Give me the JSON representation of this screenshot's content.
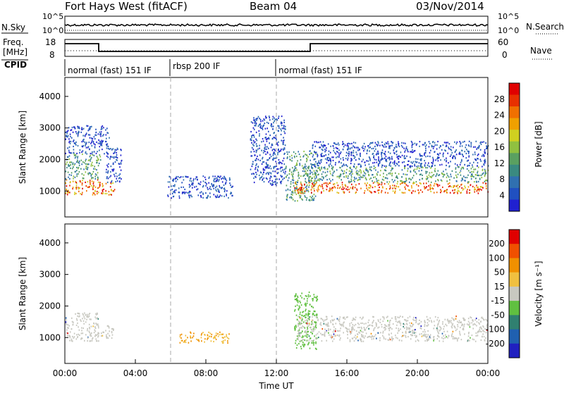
{
  "header": {
    "station": "Fort Hays West (fitACF)",
    "beam": "Beam 04",
    "date": "03/Nov/2014"
  },
  "status_panels": {
    "nsky_label": "N.Sky",
    "nsearch_label": "N.Search",
    "nsky_ticks": [
      "10^5",
      "10^0"
    ],
    "nsearch_ticks": [
      "10^5",
      "10^0"
    ],
    "freq_label_1": "Freq.",
    "freq_label_2": "[MHz]",
    "freq_ticks": [
      "18",
      "8"
    ],
    "nave_label": "Nave",
    "nave_ticks": [
      "60",
      "0"
    ],
    "cpid_label": "CPID"
  },
  "cpid_segments": [
    {
      "label": "normal (fast) 151 IF",
      "start_h": 0,
      "end_h": 6
    },
    {
      "label": "rbsp 200 IF",
      "start_h": 6,
      "end_h": 12
    },
    {
      "label": "normal (fast) 151 IF",
      "start_h": 12,
      "end_h": 24
    }
  ],
  "chart_data": [
    {
      "type": "heatmap",
      "panel": "power",
      "ylabel": "Slant Range [km]",
      "ylim": [
        180,
        4600
      ],
      "yticks": [
        1000,
        2000,
        3000,
        4000
      ],
      "xlim_hours": [
        0,
        24
      ],
      "colorbar": {
        "label": "Power [dB]",
        "ticks": [
          "28",
          "24",
          "20",
          "16",
          "12",
          "8",
          "4"
        ],
        "colors": [
          "#2020d0",
          "#2050c0",
          "#3070b0",
          "#3a8a80",
          "#5aa060",
          "#90c040",
          "#d0d020",
          "#f0a000",
          "#f07000",
          "#e83000",
          "#e00000"
        ]
      },
      "echo_regions": [
        {
          "t0": 0.0,
          "t1": 2.0,
          "r0": 900,
          "r1": 1400,
          "level": "high"
        },
        {
          "t0": 0.0,
          "t1": 2.0,
          "r0": 1400,
          "r1": 2200,
          "level": "mid"
        },
        {
          "t0": 0.0,
          "t1": 2.5,
          "r0": 2200,
          "r1": 3100,
          "level": "low"
        },
        {
          "t0": 2.0,
          "t1": 2.8,
          "r0": 900,
          "r1": 1300,
          "level": "high"
        },
        {
          "t0": 2.3,
          "t1": 3.2,
          "r0": 1300,
          "r1": 2400,
          "level": "low"
        },
        {
          "t0": 5.8,
          "t1": 9.5,
          "r0": 800,
          "r1": 1500,
          "level": "low"
        },
        {
          "t0": 10.5,
          "t1": 12.5,
          "r0": 1200,
          "r1": 3400,
          "level": "low"
        },
        {
          "t0": 12.5,
          "t1": 14.2,
          "r0": 700,
          "r1": 2300,
          "level": "mid"
        },
        {
          "t0": 13.0,
          "t1": 24.0,
          "r0": 950,
          "r1": 1300,
          "level": "high"
        },
        {
          "t0": 13.5,
          "t1": 24.0,
          "r0": 1300,
          "r1": 1800,
          "level": "mid"
        },
        {
          "t0": 14.0,
          "t1": 24.0,
          "r0": 1800,
          "r1": 2600,
          "level": "low"
        }
      ]
    },
    {
      "type": "heatmap",
      "panel": "velocity",
      "ylabel": "Slant Range [km]",
      "ylim": [
        180,
        4600
      ],
      "yticks": [
        1000,
        2000,
        3000,
        4000
      ],
      "xlim_hours": [
        0,
        24
      ],
      "xticks": [
        "00:00",
        "04:00",
        "08:00",
        "12:00",
        "16:00",
        "20:00",
        "00:00"
      ],
      "xlabel": "Time UT",
      "colorbar": {
        "label": "Velocity [m s⁻¹]",
        "ticks": [
          "200",
          "100",
          "50",
          "15",
          "-15",
          "-50",
          "-100",
          "-200"
        ],
        "colors": [
          "#2020c0",
          "#2060b0",
          "#308070",
          "#60c040",
          "#c8c8c0",
          "#f0c040",
          "#f09000",
          "#f05000",
          "#e00000"
        ]
      },
      "echo_regions": [
        {
          "t0": 0.0,
          "t1": 1.9,
          "r0": 900,
          "r1": 1800,
          "kind": "ground"
        },
        {
          "t0": 2.0,
          "t1": 2.8,
          "r0": 1000,
          "r1": 1400,
          "kind": "ground"
        },
        {
          "t0": 6.5,
          "t1": 9.3,
          "r0": 850,
          "r1": 1200,
          "kind": "neg"
        },
        {
          "t0": 13.0,
          "t1": 14.3,
          "r0": 650,
          "r1": 2500,
          "kind": "pos_small"
        },
        {
          "t0": 13.2,
          "t1": 24.0,
          "r0": 900,
          "r1": 1700,
          "kind": "ground"
        }
      ]
    }
  ]
}
